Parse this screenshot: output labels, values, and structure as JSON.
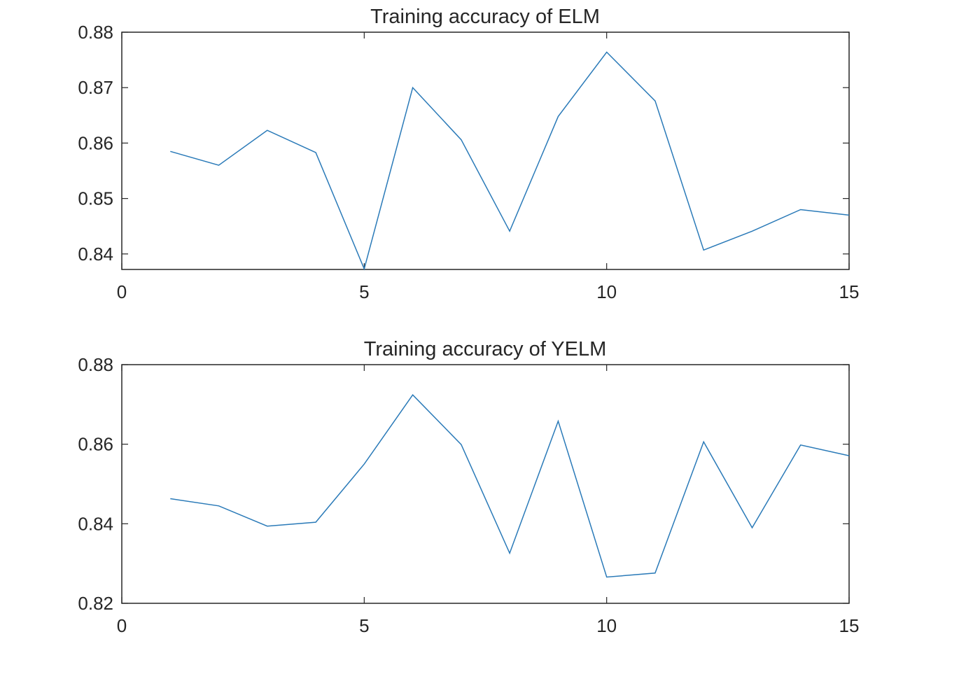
{
  "chart_data": [
    {
      "type": "line",
      "title": "Training accuracy of ELM",
      "xlabel": "",
      "ylabel": "",
      "xlim": [
        0,
        15
      ],
      "ylim": [
        0.8372,
        0.88
      ],
      "x_ticks": [
        0,
        5,
        10,
        15
      ],
      "x_tick_labels": [
        "0",
        "5",
        "10",
        "15"
      ],
      "y_ticks": [
        0.84,
        0.85,
        0.86,
        0.87,
        0.88
      ],
      "y_tick_labels": [
        "0.84",
        "0.85",
        "0.86",
        "0.87",
        "0.88"
      ],
      "grid": false,
      "series": [
        {
          "color": "#2a7ab8",
          "x": [
            1,
            2,
            3,
            4,
            5,
            6,
            7,
            8,
            9,
            10,
            11,
            12,
            13,
            14,
            15
          ],
          "y": [
            0.8585,
            0.856,
            0.8623,
            0.8583,
            0.8373,
            0.87,
            0.8606,
            0.8441,
            0.8648,
            0.8764,
            0.8676,
            0.8407,
            0.8441,
            0.848,
            0.847
          ]
        }
      ]
    },
    {
      "type": "line",
      "title": "Training accuracy of YELM",
      "xlabel": "",
      "ylabel": "",
      "xlim": [
        0,
        15
      ],
      "ylim": [
        0.82,
        0.88
      ],
      "x_ticks": [
        0,
        5,
        10,
        15
      ],
      "x_tick_labels": [
        "0",
        "5",
        "10",
        "15"
      ],
      "y_ticks": [
        0.82,
        0.84,
        0.86,
        0.88
      ],
      "y_tick_labels": [
        "0.82",
        "0.84",
        "0.86",
        "0.88"
      ],
      "grid": false,
      "series": [
        {
          "color": "#2a7ab8",
          "x": [
            1,
            2,
            3,
            4,
            5,
            6,
            7,
            8,
            9,
            10,
            11,
            12,
            13,
            14,
            15
          ],
          "y": [
            0.8463,
            0.8445,
            0.8394,
            0.8404,
            0.855,
            0.8724,
            0.8599,
            0.8326,
            0.8658,
            0.8266,
            0.8276,
            0.8606,
            0.839,
            0.8598,
            0.8571
          ]
        }
      ]
    }
  ]
}
